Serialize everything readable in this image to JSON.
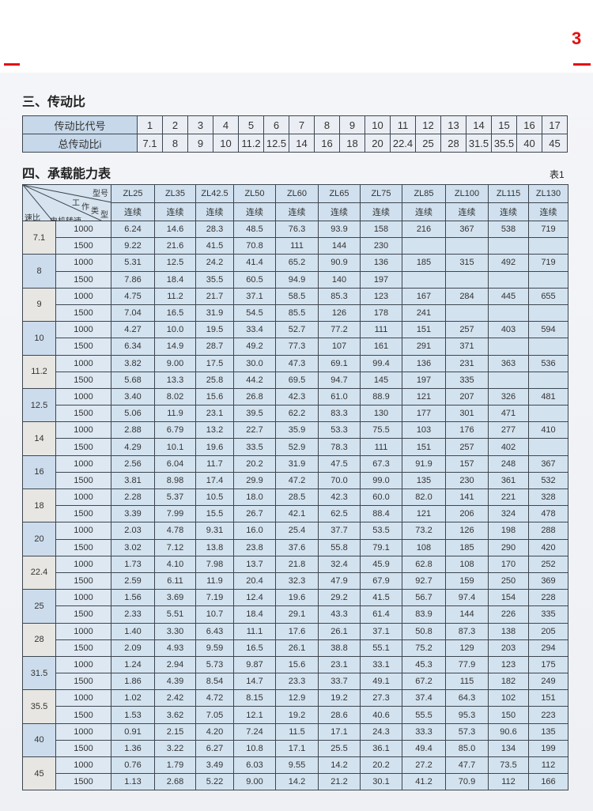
{
  "page_number": "3",
  "section3": {
    "title": "三、传动比",
    "row_labels": [
      "传动比代号",
      "总传动比i"
    ],
    "codes": [
      "1",
      "2",
      "3",
      "4",
      "5",
      "6",
      "7",
      "8",
      "9",
      "10",
      "11",
      "12",
      "13",
      "14",
      "15",
      "16",
      "17"
    ],
    "ratios": [
      "7.1",
      "8",
      "9",
      "10",
      "11.2",
      "12.5",
      "14",
      "16",
      "18",
      "20",
      "22.4",
      "25",
      "28",
      "31.5",
      "35.5",
      "40",
      "45"
    ]
  },
  "section4": {
    "title": "四、承载能力表",
    "table_no": "表1",
    "corner": {
      "model": "型号",
      "work1": "工",
      "work2": "作",
      "work3": "类",
      "work4": "型",
      "ratio": "速比",
      "motor": "电机转速"
    },
    "models": [
      "ZL25",
      "ZL35",
      "ZL42.5",
      "ZL50",
      "ZL60",
      "ZL65",
      "ZL75",
      "ZL85",
      "ZL100",
      "ZL115",
      "ZL130"
    ],
    "duty": "连续",
    "speeds": [
      "1000",
      "1500"
    ],
    "groups": [
      {
        "ratio": "7.1",
        "r1000": [
          "6.24",
          "14.6",
          "28.3",
          "48.5",
          "76.3",
          "93.9",
          "158",
          "216",
          "367",
          "538",
          "719"
        ],
        "r1500": [
          "9.22",
          "21.6",
          "41.5",
          "70.8",
          "111",
          "144",
          "230",
          "",
          "",
          "",
          ""
        ]
      },
      {
        "ratio": "8",
        "r1000": [
          "5.31",
          "12.5",
          "24.2",
          "41.4",
          "65.2",
          "90.9",
          "136",
          "185",
          "315",
          "492",
          "719"
        ],
        "r1500": [
          "7.86",
          "18.4",
          "35.5",
          "60.5",
          "94.9",
          "140",
          "197",
          "",
          "",
          "",
          ""
        ]
      },
      {
        "ratio": "9",
        "r1000": [
          "4.75",
          "11.2",
          "21.7",
          "37.1",
          "58.5",
          "85.3",
          "123",
          "167",
          "284",
          "445",
          "655"
        ],
        "r1500": [
          "7.04",
          "16.5",
          "31.9",
          "54.5",
          "85.5",
          "126",
          "178",
          "241",
          "",
          "",
          ""
        ]
      },
      {
        "ratio": "10",
        "r1000": [
          "4.27",
          "10.0",
          "19.5",
          "33.4",
          "52.7",
          "77.2",
          "111",
          "151",
          "257",
          "403",
          "594"
        ],
        "r1500": [
          "6.34",
          "14.9",
          "28.7",
          "49.2",
          "77.3",
          "107",
          "161",
          "291",
          "371",
          "",
          ""
        ]
      },
      {
        "ratio": "11.2",
        "r1000": [
          "3.82",
          "9.00",
          "17.5",
          "30.0",
          "47.3",
          "69.1",
          "99.4",
          "136",
          "231",
          "363",
          "536"
        ],
        "r1500": [
          "5.68",
          "13.3",
          "25.8",
          "44.2",
          "69.5",
          "94.7",
          "145",
          "197",
          "335",
          "",
          ""
        ]
      },
      {
        "ratio": "12.5",
        "r1000": [
          "3.40",
          "8.02",
          "15.6",
          "26.8",
          "42.3",
          "61.0",
          "88.9",
          "121",
          "207",
          "326",
          "481"
        ],
        "r1500": [
          "5.06",
          "11.9",
          "23.1",
          "39.5",
          "62.2",
          "83.3",
          "130",
          "177",
          "301",
          "471",
          ""
        ]
      },
      {
        "ratio": "14",
        "r1000": [
          "2.88",
          "6.79",
          "13.2",
          "22.7",
          "35.9",
          "53.3",
          "75.5",
          "103",
          "176",
          "277",
          "410"
        ],
        "r1500": [
          "4.29",
          "10.1",
          "19.6",
          "33.5",
          "52.9",
          "78.3",
          "111",
          "151",
          "257",
          "402",
          ""
        ]
      },
      {
        "ratio": "16",
        "r1000": [
          "2.56",
          "6.04",
          "11.7",
          "20.2",
          "31.9",
          "47.5",
          "67.3",
          "91.9",
          "157",
          "248",
          "367"
        ],
        "r1500": [
          "3.81",
          "8.98",
          "17.4",
          "29.9",
          "47.2",
          "70.0",
          "99.0",
          "135",
          "230",
          "361",
          "532"
        ]
      },
      {
        "ratio": "18",
        "r1000": [
          "2.28",
          "5.37",
          "10.5",
          "18.0",
          "28.5",
          "42.3",
          "60.0",
          "82.0",
          "141",
          "221",
          "328"
        ],
        "r1500": [
          "3.39",
          "7.99",
          "15.5",
          "26.7",
          "42.1",
          "62.5",
          "88.4",
          "121",
          "206",
          "324",
          "478"
        ]
      },
      {
        "ratio": "20",
        "r1000": [
          "2.03",
          "4.78",
          "9.31",
          "16.0",
          "25.4",
          "37.7",
          "53.5",
          "73.2",
          "126",
          "198",
          "288"
        ],
        "r1500": [
          "3.02",
          "7.12",
          "13.8",
          "23.8",
          "37.6",
          "55.8",
          "79.1",
          "108",
          "185",
          "290",
          "420"
        ]
      },
      {
        "ratio": "22.4",
        "r1000": [
          "1.73",
          "4.10",
          "7.98",
          "13.7",
          "21.8",
          "32.4",
          "45.9",
          "62.8",
          "108",
          "170",
          "252"
        ],
        "r1500": [
          "2.59",
          "6.11",
          "11.9",
          "20.4",
          "32.3",
          "47.9",
          "67.9",
          "92.7",
          "159",
          "250",
          "369"
        ]
      },
      {
        "ratio": "25",
        "r1000": [
          "1.56",
          "3.69",
          "7.19",
          "12.4",
          "19.6",
          "29.2",
          "41.5",
          "56.7",
          "97.4",
          "154",
          "228"
        ],
        "r1500": [
          "2.33",
          "5.51",
          "10.7",
          "18.4",
          "29.1",
          "43.3",
          "61.4",
          "83.9",
          "144",
          "226",
          "335"
        ]
      },
      {
        "ratio": "28",
        "r1000": [
          "1.40",
          "3.30",
          "6.43",
          "11.1",
          "17.6",
          "26.1",
          "37.1",
          "50.8",
          "87.3",
          "138",
          "205"
        ],
        "r1500": [
          "2.09",
          "4.93",
          "9.59",
          "16.5",
          "26.1",
          "38.8",
          "55.1",
          "75.2",
          "129",
          "203",
          "294"
        ]
      },
      {
        "ratio": "31.5",
        "r1000": [
          "1.24",
          "2.94",
          "5.73",
          "9.87",
          "15.6",
          "23.1",
          "33.1",
          "45.3",
          "77.9",
          "123",
          "175"
        ],
        "r1500": [
          "1.86",
          "4.39",
          "8.54",
          "14.7",
          "23.3",
          "33.7",
          "49.1",
          "67.2",
          "115",
          "182",
          "249"
        ]
      },
      {
        "ratio": "35.5",
        "r1000": [
          "1.02",
          "2.42",
          "4.72",
          "8.15",
          "12.9",
          "19.2",
          "27.3",
          "37.4",
          "64.3",
          "102",
          "151"
        ],
        "r1500": [
          "1.53",
          "3.62",
          "7.05",
          "12.1",
          "19.2",
          "28.6",
          "40.6",
          "55.5",
          "95.3",
          "150",
          "223"
        ]
      },
      {
        "ratio": "40",
        "r1000": [
          "0.91",
          "2.15",
          "4.20",
          "7.24",
          "11.5",
          "17.1",
          "24.3",
          "33.3",
          "57.3",
          "90.6",
          "135"
        ],
        "r1500": [
          "1.36",
          "3.22",
          "6.27",
          "10.8",
          "17.1",
          "25.5",
          "36.1",
          "49.4",
          "85.0",
          "134",
          "199"
        ]
      },
      {
        "ratio": "45",
        "r1000": [
          "0.76",
          "1.79",
          "3.49",
          "6.03",
          "9.55",
          "14.2",
          "20.2",
          "27.2",
          "47.7",
          "73.5",
          "112"
        ],
        "r1500": [
          "1.13",
          "2.68",
          "5.22",
          "9.00",
          "14.2",
          "21.2",
          "30.1",
          "41.2",
          "70.9",
          "112",
          "166"
        ]
      }
    ]
  }
}
